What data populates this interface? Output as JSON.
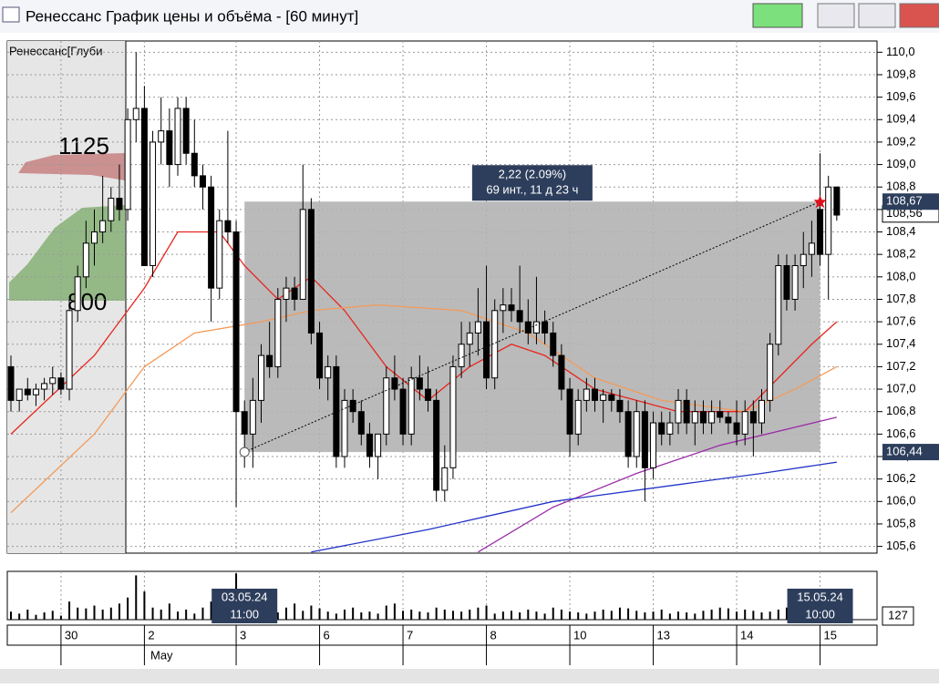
{
  "window": {
    "title": "Ренессанс График цены и объёма - [60 минут]"
  },
  "chart_data": {
    "type": "candlestick",
    "legend": "Ренессанс[Глуби",
    "categories": [
      null,
      null,
      null,
      null,
      null,
      null,
      "30",
      null,
      null,
      null,
      null,
      null,
      null,
      null,
      null,
      null,
      "2",
      null,
      null,
      null,
      null,
      null,
      null,
      null,
      null,
      null,
      null,
      "3",
      null,
      null,
      null,
      null,
      null,
      null,
      null,
      null,
      null,
      "6",
      null,
      null,
      null,
      null,
      null,
      null,
      null,
      null,
      null,
      "7",
      null,
      null,
      null,
      null,
      null,
      null,
      null,
      null,
      null,
      "8",
      null,
      null,
      null,
      null,
      null,
      null,
      null,
      null,
      null,
      "10",
      null,
      null,
      null,
      null,
      null,
      null,
      null,
      null,
      null,
      "13",
      null,
      null,
      null,
      null,
      null,
      null,
      null,
      null,
      null,
      "14",
      null,
      null,
      null,
      null,
      null,
      null,
      null,
      null,
      null,
      "15",
      null,
      null
    ],
    "month_label": "May",
    "candles": [
      [
        107.2,
        107.3,
        106.8,
        106.9
      ],
      [
        106.9,
        107.0,
        106.8,
        107.0
      ],
      [
        107.0,
        107.1,
        106.9,
        106.95
      ],
      [
        106.95,
        107.05,
        106.85,
        107.0
      ],
      [
        107.0,
        107.1,
        106.9,
        107.05
      ],
      [
        107.05,
        107.2,
        106.95,
        107.1
      ],
      [
        107.1,
        107.15,
        106.95,
        107.0
      ],
      [
        107.0,
        107.8,
        106.9,
        107.7
      ],
      [
        107.7,
        108.1,
        107.6,
        108.0
      ],
      [
        108.0,
        108.5,
        107.9,
        108.3
      ],
      [
        108.3,
        108.6,
        108.1,
        108.4
      ],
      [
        108.4,
        108.9,
        108.3,
        108.5
      ],
      [
        108.5,
        108.8,
        108.4,
        108.7
      ],
      [
        108.7,
        109.0,
        108.5,
        108.6
      ],
      [
        108.6,
        109.5,
        108.5,
        109.4
      ],
      [
        109.4,
        110.0,
        109.2,
        109.5
      ],
      [
        109.5,
        109.7,
        108.1,
        108.1
      ],
      [
        108.1,
        109.3,
        108.0,
        109.2
      ],
      [
        109.2,
        109.6,
        109.0,
        109.3
      ],
      [
        109.3,
        109.5,
        108.8,
        109.0
      ],
      [
        109.0,
        109.6,
        108.9,
        109.5
      ],
      [
        109.5,
        109.6,
        109.0,
        109.1
      ],
      [
        109.1,
        109.4,
        108.8,
        108.9
      ],
      [
        108.9,
        109.0,
        108.6,
        108.8
      ],
      [
        108.8,
        108.9,
        107.6,
        107.9
      ],
      [
        107.9,
        108.6,
        107.8,
        108.5
      ],
      [
        108.5,
        109.3,
        108.3,
        108.4
      ],
      [
        108.4,
        108.5,
        105.95,
        106.8
      ],
      [
        106.8,
        106.9,
        106.3,
        106.6
      ],
      [
        106.6,
        107.1,
        106.3,
        106.9
      ],
      [
        106.9,
        107.4,
        106.7,
        107.3
      ],
      [
        107.3,
        107.6,
        107.1,
        107.2
      ],
      [
        107.2,
        107.9,
        107.1,
        107.8
      ],
      [
        107.8,
        108.0,
        107.6,
        107.9
      ],
      [
        107.9,
        108.0,
        107.7,
        107.8
      ],
      [
        107.8,
        109.0,
        107.8,
        108.6
      ],
      [
        108.6,
        108.7,
        107.4,
        107.5
      ],
      [
        107.5,
        107.6,
        107.0,
        107.1
      ],
      [
        107.1,
        107.3,
        106.9,
        107.2
      ],
      [
        107.2,
        107.3,
        106.3,
        106.4
      ],
      [
        106.4,
        107.0,
        106.3,
        106.9
      ],
      [
        106.9,
        107.0,
        106.7,
        106.8
      ],
      [
        106.8,
        106.9,
        106.5,
        106.6
      ],
      [
        106.6,
        106.7,
        106.3,
        106.4
      ],
      [
        106.4,
        106.6,
        106.2,
        106.6
      ],
      [
        106.6,
        107.2,
        106.5,
        107.1
      ],
      [
        107.1,
        107.3,
        106.9,
        107.0
      ],
      [
        107.0,
        107.1,
        106.5,
        106.6
      ],
      [
        106.6,
        107.2,
        106.5,
        107.1
      ],
      [
        107.1,
        107.3,
        106.9,
        107.0
      ],
      [
        107.0,
        107.2,
        106.8,
        106.9
      ],
      [
        106.9,
        107.0,
        106.0,
        106.1
      ],
      [
        106.1,
        106.5,
        106.0,
        106.3
      ],
      [
        106.3,
        107.3,
        106.2,
        107.2
      ],
      [
        107.2,
        107.6,
        107.1,
        107.4
      ],
      [
        107.4,
        107.6,
        107.2,
        107.5
      ],
      [
        107.5,
        107.9,
        107.3,
        107.6
      ],
      [
        107.6,
        108.1,
        107.0,
        107.1
      ],
      [
        107.1,
        107.8,
        107.0,
        107.7
      ],
      [
        107.7,
        107.9,
        107.5,
        107.75
      ],
      [
        107.75,
        107.9,
        107.6,
        107.7
      ],
      [
        107.7,
        108.1,
        107.5,
        107.6
      ],
      [
        107.6,
        107.8,
        107.4,
        107.5
      ],
      [
        107.5,
        108.0,
        107.4,
        107.6
      ],
      [
        107.6,
        107.7,
        107.4,
        107.5
      ],
      [
        107.5,
        107.6,
        107.2,
        107.3
      ],
      [
        107.3,
        107.4,
        106.9,
        107.0
      ],
      [
        107.0,
        107.1,
        106.4,
        106.6
      ],
      [
        106.6,
        107.0,
        106.5,
        106.9
      ],
      [
        106.9,
        107.1,
        106.8,
        107.0
      ],
      [
        107.0,
        107.1,
        106.8,
        106.9
      ],
      [
        106.9,
        107.0,
        106.7,
        106.95
      ],
      [
        106.95,
        107.0,
        106.8,
        106.9
      ],
      [
        106.9,
        107.0,
        106.7,
        106.8
      ],
      [
        106.8,
        106.9,
        106.3,
        106.4
      ],
      [
        106.4,
        106.9,
        106.3,
        106.8
      ],
      [
        106.8,
        106.9,
        106.0,
        106.3
      ],
      [
        106.3,
        106.8,
        106.2,
        106.7
      ],
      [
        106.7,
        106.8,
        106.5,
        106.6
      ],
      [
        106.6,
        106.8,
        106.5,
        106.7
      ],
      [
        106.7,
        107.0,
        106.6,
        106.9
      ],
      [
        106.9,
        107.0,
        106.6,
        106.7
      ],
      [
        106.7,
        106.9,
        106.5,
        106.8
      ],
      [
        106.8,
        106.9,
        106.6,
        106.7
      ],
      [
        106.7,
        106.9,
        106.6,
        106.8
      ],
      [
        106.8,
        106.9,
        106.7,
        106.75
      ],
      [
        106.75,
        106.8,
        106.6,
        106.7
      ],
      [
        106.7,
        106.9,
        106.5,
        106.6
      ],
      [
        106.6,
        106.9,
        106.5,
        106.8
      ],
      [
        106.8,
        106.9,
        106.4,
        106.7
      ],
      [
        106.7,
        107.0,
        106.6,
        106.9
      ],
      [
        106.9,
        107.5,
        106.8,
        107.4
      ],
      [
        107.4,
        108.2,
        107.3,
        108.1
      ],
      [
        108.1,
        108.2,
        107.7,
        107.8
      ],
      [
        107.8,
        108.2,
        107.7,
        108.1
      ],
      [
        108.1,
        108.4,
        107.9,
        108.2
      ],
      [
        108.2,
        108.5,
        108.0,
        108.3
      ],
      [
        108.6,
        109.1,
        108.1,
        108.2
      ],
      [
        108.2,
        108.9,
        107.8,
        108.8
      ],
      [
        108.8,
        108.8,
        108.5,
        108.55
      ]
    ],
    "ylim": [
      105.54,
      110.1
    ],
    "yticks": [
      {
        "value": 105.6,
        "label": "105,6"
      },
      {
        "value": 105.8,
        "label": "105,8"
      },
      {
        "value": 106.0,
        "label": "106,0"
      },
      {
        "value": 106.2,
        "label": "106,2"
      },
      {
        "value": 106.4,
        "label": "106,4"
      },
      {
        "value": 106.6,
        "label": "106,6"
      },
      {
        "value": 106.8,
        "label": "106,8"
      },
      {
        "value": 107.0,
        "label": "107,0"
      },
      {
        "value": 107.2,
        "label": "107,2"
      },
      {
        "value": 107.4,
        "label": "107,4"
      },
      {
        "value": 107.6,
        "label": "107,6"
      },
      {
        "value": 107.8,
        "label": "107,8"
      },
      {
        "value": 108.0,
        "label": "108,0"
      },
      {
        "value": 108.2,
        "label": "108,2"
      },
      {
        "value": 108.4,
        "label": "108,4"
      },
      {
        "value": 108.6,
        "label": "108,6"
      },
      {
        "value": 108.8,
        "label": "108,8"
      },
      {
        "value": 109.0,
        "label": "109,0"
      },
      {
        "value": 109.2,
        "label": "109,2"
      },
      {
        "value": 109.4,
        "label": "109,4"
      },
      {
        "value": 109.6,
        "label": "109,6"
      },
      {
        "value": 109.8,
        "label": "109,8"
      },
      {
        "value": 110.0,
        "label": "110,0"
      }
    ],
    "grid": true,
    "overlays": [
      {
        "color": "#e8251e",
        "x": [
          0,
          10,
          16,
          20,
          25,
          28,
          32,
          36,
          40,
          45,
          50,
          55,
          60,
          64,
          70,
          80,
          88,
          92,
          96,
          99
        ],
        "values": [
          106.6,
          107.3,
          107.9,
          108.4,
          108.4,
          108.1,
          107.8,
          108.0,
          107.7,
          107.2,
          106.9,
          107.2,
          107.4,
          107.3,
          107.0,
          106.8,
          106.8,
          107.1,
          107.4,
          107.6
        ]
      },
      {
        "color": "#f39a5a",
        "x": [
          0,
          10,
          16,
          22,
          30,
          36,
          44,
          54,
          62,
          70,
          78,
          88,
          94,
          99
        ],
        "values": [
          105.9,
          106.6,
          107.2,
          107.5,
          107.6,
          107.7,
          107.75,
          107.7,
          107.5,
          107.1,
          106.9,
          106.8,
          107.0,
          107.2
        ]
      },
      {
        "color": "#9b2fa8",
        "x": [
          56,
          65,
          75,
          85,
          99
        ],
        "values": [
          105.55,
          105.95,
          106.25,
          106.5,
          106.75
        ]
      },
      {
        "color": "#2233c8",
        "x": [
          36,
          50,
          65,
          80,
          90,
          99
        ],
        "values": [
          105.55,
          105.75,
          106.0,
          106.15,
          106.25,
          106.35
        ]
      }
    ],
    "measure": {
      "x": [
        28,
        97
      ],
      "values": [
        106.44,
        108.67
      ],
      "value_labels": [
        "106,44",
        "108,67"
      ],
      "change": "2,22 (2.09%)",
      "duration": "69 инт., 11 д 23 ч"
    },
    "last_price": {
      "value": 108.56,
      "label": "108,56"
    },
    "profile_labels": [
      "1125",
      "800"
    ],
    "volume": {
      "ylim": [
        0,
        120
      ],
      "label": "127",
      "values": [
        20,
        15,
        25,
        12,
        18,
        22,
        10,
        45,
        30,
        28,
        35,
        25,
        30,
        40,
        55,
        110,
        70,
        30,
        25,
        40,
        20,
        25,
        15,
        30,
        45,
        20,
        25,
        115,
        50,
        30,
        20,
        25,
        18,
        30,
        40,
        22,
        35,
        28,
        20,
        15,
        25,
        30,
        18,
        20,
        15,
        35,
        40,
        22,
        25,
        20,
        18,
        30,
        25,
        22,
        20,
        25,
        30,
        35,
        15,
        20,
        22,
        18,
        25,
        20,
        15,
        30,
        25,
        20,
        18,
        15,
        20,
        25,
        22,
        30,
        28,
        22,
        18,
        20,
        25,
        15,
        20,
        18,
        15,
        22,
        25,
        30,
        28,
        20,
        25,
        22,
        18,
        20,
        25,
        30,
        20,
        25,
        35,
        40,
        30,
        20
      ]
    },
    "cursors": [
      {
        "x": 28,
        "date": "03.05.24",
        "time": "11:00"
      },
      {
        "x": 97,
        "date": "15.05.24",
        "time": "10:00"
      }
    ]
  }
}
